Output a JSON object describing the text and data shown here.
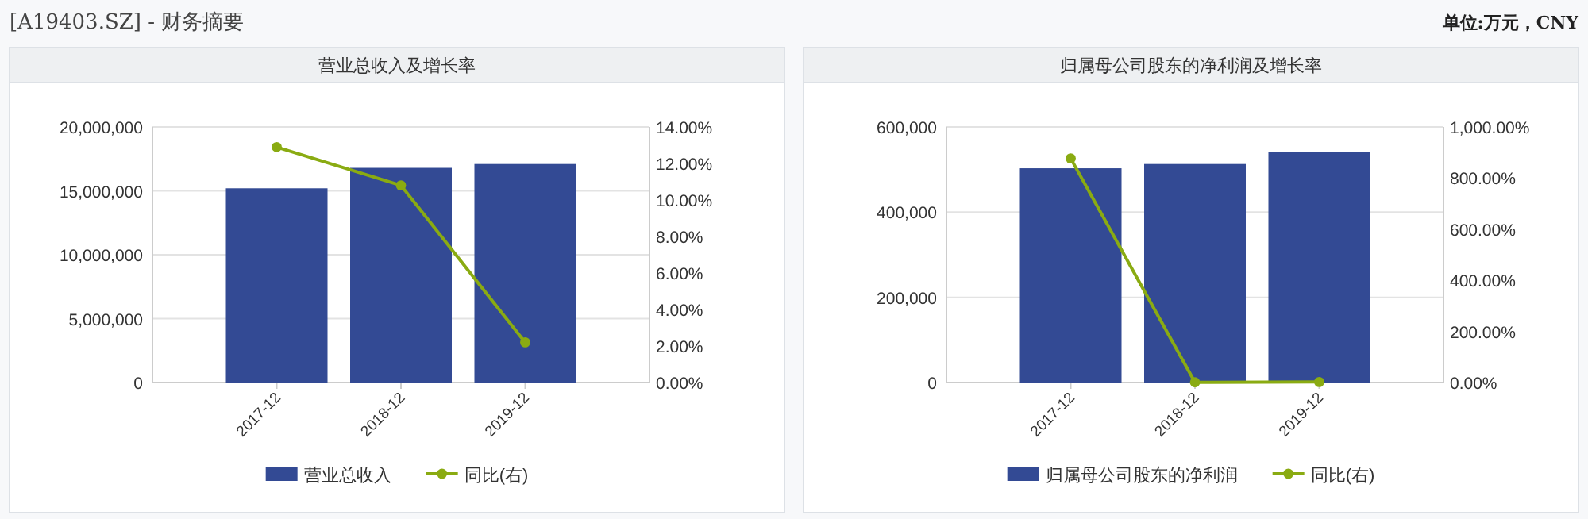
{
  "chart_data": [
    {
      "type": "bar",
      "title": "营业总收入及增长率",
      "annotations": [
        "[A19403.SZ] - 财务摘要"
      ],
      "categories": [
        "2017-12",
        "2018-12",
        "2019-12"
      ],
      "series": [
        {
          "name": "营业总收入",
          "color": "#334a94",
          "values": [
            15200000,
            16800000,
            17100000
          ]
        },
        {
          "name": "同比(右)",
          "type": "line",
          "axis": "y2",
          "color": "#8aab12",
          "marker": "circle",
          "values": [
            12.9,
            10.8,
            2.2
          ]
        }
      ],
      "ylim": [
        0,
        20000000
      ],
      "yticks": [
        0,
        {
          "value": 5000000,
          "label": "5,000,000"
        },
        {
          "value": 10000000,
          "label": "10,000,000"
        },
        {
          "value": 15000000,
          "label": "15,000,000"
        },
        {
          "value": 20000000,
          "label": "20,000,000"
        }
      ],
      "y2lim": [
        0,
        14
      ],
      "y2ticks": [
        {
          "value": 0,
          "label": "0.00%"
        },
        {
          "value": 2,
          "label": "2.00%"
        },
        {
          "value": 4,
          "label": "4.00%"
        },
        {
          "value": 6,
          "label": "6.00%"
        },
        {
          "value": 8,
          "label": "8.00%"
        },
        {
          "value": 10,
          "label": "10.00%"
        },
        {
          "value": 12,
          "label": "12.00%"
        },
        {
          "value": 14,
          "label": "14.00%"
        }
      ],
      "grid": "y",
      "legend": "bottom"
    },
    {
      "type": "bar",
      "title": "归属母公司股东的净利润及增长率",
      "annotations": [
        "单位:万元，CNY"
      ],
      "categories": [
        "2017-12",
        "2018-12",
        "2019-12"
      ],
      "series": [
        {
          "name": "归属母公司股东的净利润",
          "color": "#334a94",
          "values": [
            503000,
            513000,
            541000
          ]
        },
        {
          "name": "同比(右)",
          "type": "line",
          "axis": "y2",
          "color": "#8aab12",
          "marker": "circle",
          "values": [
            877,
            1,
            2
          ]
        }
      ],
      "ylim": [
        0,
        600000
      ],
      "yticks": [
        0,
        {
          "value": 200000,
          "label": "200,000"
        },
        {
          "value": 400000,
          "label": "400,000"
        },
        {
          "value": 600000,
          "label": "600,000"
        }
      ],
      "y2lim": [
        0,
        1000
      ],
      "y2ticks": [
        {
          "value": 0,
          "label": "0.00%"
        },
        {
          "value": 200,
          "label": "200.00%"
        },
        {
          "value": 400,
          "label": "400.00%"
        },
        {
          "value": 600,
          "label": "600.00%"
        },
        {
          "value": 800,
          "label": "800.00%"
        },
        {
          "value": 1000,
          "label": "1,000.00%"
        }
      ],
      "grid": "y",
      "legend": "bottom"
    }
  ]
}
